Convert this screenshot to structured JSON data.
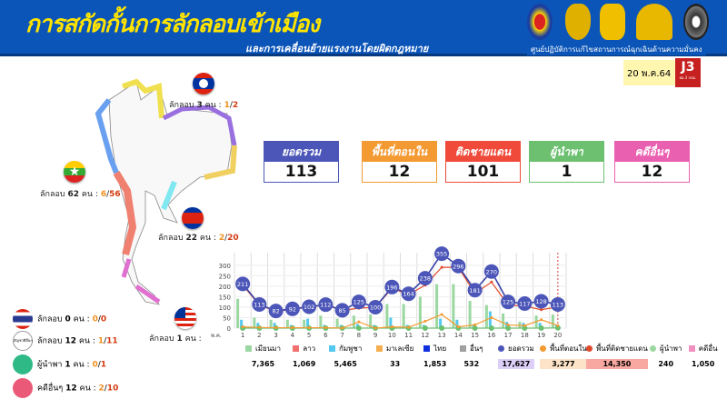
{
  "header": {
    "title": "การสกัดกั้นการลักลอบเข้าเมือง",
    "subtitle": "และการเคลื่อนย้ายแรงงานโดยผิดกฎหมาย",
    "org": "ศูนย์ปฏิบัติการแก้ไขสถานการณ์ฉุกเฉินด้านความมั่นคง",
    "date": "20 พ.ค.64",
    "badge": "J3",
    "badge_sub": "ฝอ.3 กปม.",
    "colors": {
      "bg": "#0b55b8",
      "title": "#ffe400"
    }
  },
  "countries": [
    {
      "flag": "laos-flag",
      "label": "ลักลอบ",
      "count": "3",
      "unit": "คน :",
      "a": "1",
      "b": "2"
    },
    {
      "flag": "myanmar-flag",
      "label": "ลักลอบ",
      "count": "62",
      "unit": "คน :",
      "a": "6",
      "b": "56"
    },
    {
      "flag": "cambodia-flag",
      "label": "ลักลอบ",
      "count": "22",
      "unit": "คน :",
      "a": "2",
      "b": "20"
    },
    {
      "flag": "malaysia-flag",
      "label": "ลักลอบ",
      "count": "1",
      "unit": "คน :"
    }
  ],
  "side": [
    {
      "icon": "thailand-flag",
      "label": "ลักลอบ",
      "count": "0",
      "unit": "คน :",
      "a": "0",
      "b": "0"
    },
    {
      "icon": "other-nationality-icon",
      "icon_text": "สัญชาติอื่นๆ",
      "label": "ลักลอบ",
      "count": "12",
      "unit": "คน :",
      "a": "1",
      "b": "11"
    },
    {
      "icon": "green-circle",
      "label": "ผู้นำพา",
      "count": "1",
      "unit": "คน :",
      "a": "0",
      "b": "1",
      "color": "#2fb987"
    },
    {
      "icon": "pink-circle",
      "label": "คดีอื่นๆ",
      "count": "12",
      "unit": "คน :",
      "a": "2",
      "b": "10",
      "color": "#ea5a78"
    }
  ],
  "stats": [
    {
      "label": "ยอดรวม",
      "value": "113",
      "color": "#4c56b8"
    },
    {
      "label": "พื้นที่ตอนใน",
      "value": "12",
      "color": "#f49a32"
    },
    {
      "label": "ติดชายแดน",
      "value": "101",
      "color": "#ef4a3a"
    },
    {
      "label": "ผู้นำพา",
      "value": "1",
      "color": "#6cc070"
    },
    {
      "label": "คดีอื่นๆ",
      "value": "12",
      "color": "#ea60b0"
    }
  ],
  "chart_data": {
    "type": "bar+line",
    "x_prefix": "พ.ค.",
    "categories": [
      "1",
      "2",
      "3",
      "4",
      "5",
      "6",
      "7",
      "8",
      "9",
      "10",
      "11",
      "12",
      "13",
      "14",
      "15",
      "16",
      "17",
      "18",
      "19",
      "20"
    ],
    "yticks": [
      "0",
      "50",
      "100",
      "150",
      "200",
      "250",
      "300"
    ],
    "ylim": [
      0,
      360
    ],
    "grid": true,
    "bars": [
      {
        "name": "เมียนมา",
        "color": "#9bd7a0",
        "values": [
          140,
          50,
          40,
          40,
          40,
          60,
          45,
          60,
          65,
          115,
          115,
          150,
          210,
          210,
          130,
          110,
          70,
          30,
          60,
          65
        ]
      },
      {
        "name": "กัมพูชา",
        "color": "#55c8f0",
        "values": [
          40,
          25,
          25,
          15,
          45,
          15,
          15,
          20,
          15,
          50,
          15,
          15,
          45,
          40,
          15,
          80,
          30,
          25,
          25,
          15
        ]
      }
    ],
    "lines": [
      {
        "name": "ยอดรวม",
        "color": "#3a43a8",
        "values": [
          211,
          113,
          82,
          92,
          102,
          112,
          85,
          125,
          100,
          196,
          164,
          238,
          355,
          296,
          181,
          270,
          125,
          117,
          128,
          113
        ],
        "labeled": true
      },
      {
        "name": "พื้นที่ติดชายแดน",
        "color": "#e04a2a",
        "values": [
          205,
          110,
          80,
          90,
          100,
          110,
          85,
          95,
          100,
          190,
          160,
          205,
          290,
          290,
          165,
          220,
          110,
          105,
          88,
          101
        ]
      },
      {
        "name": "พื้นที่ตอนใน",
        "color": "#f49a32",
        "values": [
          6,
          3,
          2,
          2,
          2,
          2,
          0,
          30,
          0,
          6,
          4,
          33,
          65,
          6,
          16,
          50,
          15,
          12,
          40,
          12
        ]
      },
      {
        "name": "ผู้นำพา",
        "color": "#6cc070",
        "values": [
          0,
          0,
          0,
          0,
          0,
          0,
          0,
          0,
          0,
          0,
          0,
          0,
          0,
          0,
          0,
          0,
          0,
          0,
          0,
          1
        ]
      }
    ],
    "marker_day": "19.5",
    "legend": [
      {
        "name": "เมียนมา",
        "total": "7,365",
        "color": "#9bd7a0"
      },
      {
        "name": "ลาว",
        "total": "1,069",
        "color": "#f07070"
      },
      {
        "name": "กัมพูชา",
        "total": "5,465",
        "color": "#55c8f0"
      },
      {
        "name": "มาเลเซีย",
        "total": "33",
        "color": "#f4b050"
      },
      {
        "name": "ไทย",
        "total": "1,853",
        "color": "#1030e0"
      },
      {
        "name": "อื่นๆ",
        "total": "532",
        "color": "#a0a0a0"
      },
      {
        "name": "ยอดรวม",
        "total": "17,627",
        "color": "#4c56b8",
        "bg": "#ddd0f8"
      },
      {
        "name": "พื้นที่ตอนใน",
        "total": "3,277",
        "color": "#f49a32",
        "bg": "#fde3c8"
      },
      {
        "name": "พื้นที่ติดชายแดน",
        "total": "14,350",
        "color": "#e04a2a",
        "bg": "#f8a8a0"
      },
      {
        "name": "ผู้นำพา",
        "total": "240",
        "color": "#9bd7a0"
      },
      {
        "name": "คดีอื่น",
        "total": "1,050",
        "color": "#f090c0"
      }
    ]
  }
}
